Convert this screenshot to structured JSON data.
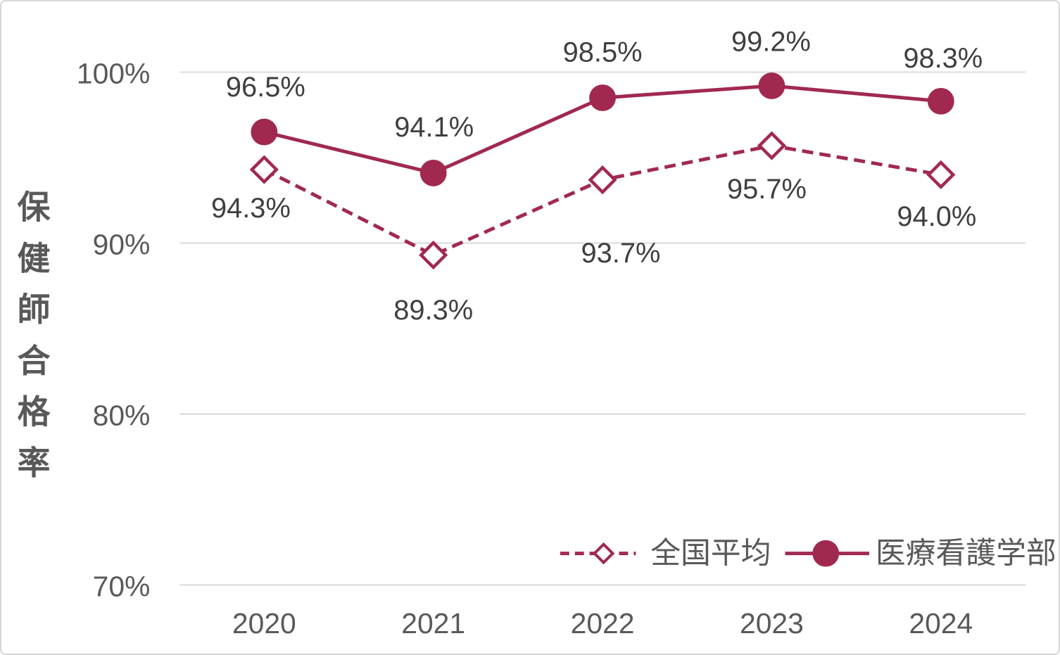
{
  "chart_data": {
    "type": "line",
    "title": "",
    "ylabel": "保健師合格率",
    "xlabel": "",
    "categories": [
      "2020",
      "2021",
      "2022",
      "2023",
      "2024"
    ],
    "y_ticks": [
      {
        "label": "100%",
        "value": 100
      },
      {
        "label": "90%",
        "value": 90
      },
      {
        "label": "80%",
        "value": 80
      },
      {
        "label": "70%",
        "value": 70
      }
    ],
    "ylim": [
      70,
      100
    ],
    "grid": "horizontal-only",
    "legend_position": "bottom-right",
    "series": [
      {
        "name": "全国平均",
        "values": [
          94.3,
          89.3,
          93.7,
          95.7,
          94.0
        ],
        "labels": [
          "94.3%",
          "89.3%",
          "93.7%",
          "95.7%",
          "94.0%"
        ],
        "line_style": "dashed",
        "marker": "open-diamond",
        "label_offsets": [
          [
            -19,
            55
          ],
          [
            0,
            79
          ],
          [
            26,
            105
          ],
          [
            -7,
            62
          ],
          [
            -6,
            60
          ]
        ]
      },
      {
        "name": "医療看護学部",
        "values": [
          96.5,
          94.1,
          98.5,
          99.2,
          98.3
        ],
        "labels": [
          "96.5%",
          "94.1%",
          "98.5%",
          "99.2%",
          "98.3%"
        ],
        "line_style": "solid",
        "marker": "filled-circle",
        "label_offsets": [
          [
            2,
            -64
          ],
          [
            1,
            -65
          ],
          [
            0,
            -65
          ],
          [
            -1,
            -63
          ],
          [
            3,
            -61
          ]
        ]
      }
    ],
    "colors": {
      "series": "#A1294F",
      "grid": "#D9D9D9",
      "axis_text": "#595959",
      "data_label_text": "#3F3F3F",
      "background": "#FFFFFF",
      "frame_border": "#D6D6D6"
    }
  }
}
